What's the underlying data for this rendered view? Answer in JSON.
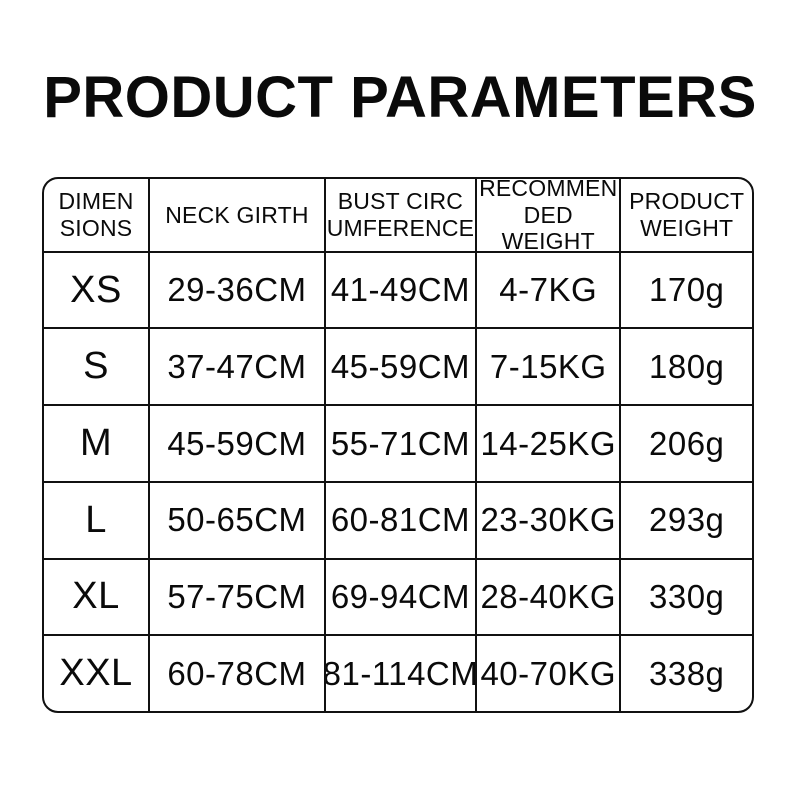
{
  "title": "PRODUCT PARAMETERS",
  "colors": {
    "background": "#ffffff",
    "text": "#0a0a0a",
    "table_border": "#111111"
  },
  "table": {
    "columns": [
      {
        "id": "dimensions",
        "label": "DIMEN\nSIONS"
      },
      {
        "id": "neck_girth",
        "label": "NECK GIRTH"
      },
      {
        "id": "bust_circumference",
        "label": "BUST CIRC\nUMFERENCE"
      },
      {
        "id": "recommended_weight",
        "label": "RECOMMEN\nDED WEIGHT"
      },
      {
        "id": "product_weight",
        "label": "PRODUCT\nWEIGHT"
      }
    ],
    "rows": [
      {
        "size": "XS",
        "neck_girth": "29-36CM",
        "bust_circumference": "41-49CM",
        "recommended_weight": "4-7KG",
        "product_weight": "170g"
      },
      {
        "size": "S",
        "neck_girth": "37-47CM",
        "bust_circumference": "45-59CM",
        "recommended_weight": "7-15KG",
        "product_weight": "180g"
      },
      {
        "size": "M",
        "neck_girth": "45-59CM",
        "bust_circumference": "55-71CM",
        "recommended_weight": "14-25KG",
        "product_weight": "206g"
      },
      {
        "size": "L",
        "neck_girth": "50-65CM",
        "bust_circumference": "60-81CM",
        "recommended_weight": "23-30KG",
        "product_weight": "293g"
      },
      {
        "size": "XL",
        "neck_girth": "57-75CM",
        "bust_circumference": "69-94CM",
        "recommended_weight": "28-40KG",
        "product_weight": "330g"
      },
      {
        "size": "XXL",
        "neck_girth": "60-78CM",
        "bust_circumference": "81-114CM",
        "recommended_weight": "40-70KG",
        "product_weight": "338g"
      }
    ]
  }
}
